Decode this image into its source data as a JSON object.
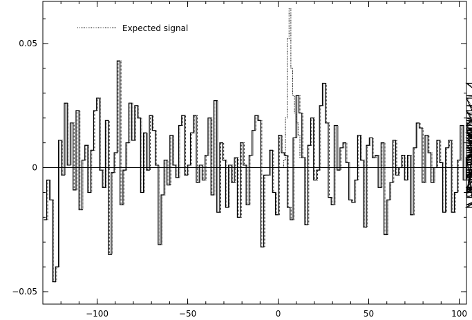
{
  "chart_data": {
    "type": "line",
    "title": "",
    "xlabel": "",
    "ylabel": "",
    "xlim": [
      -130,
      104
    ],
    "ylim": [
      -0.055,
      0.067
    ],
    "x_ticks": [
      -100,
      -50,
      0,
      50,
      100
    ],
    "x_tick_labels": [
      "−100",
      "−50",
      "0",
      "50",
      "100"
    ],
    "y_ticks": [
      -0.05,
      0,
      0.05
    ],
    "y_tick_labels": [
      "−0.05",
      "0",
      "0.05"
    ],
    "grid": false,
    "legend_position": "top-left",
    "series": [
      {
        "name": "",
        "style": "solid",
        "color": "#000000",
        "bin_width": 1.62,
        "x_start": -129.5,
        "values": [
          -0.021,
          -0.005,
          -0.013,
          -0.046,
          -0.04,
          0.011,
          -0.003,
          0.026,
          0.001,
          0.018,
          -0.009,
          0.023,
          -0.017,
          0.003,
          0.009,
          -0.01,
          0.007,
          0.023,
          0.028,
          -0.001,
          -0.008,
          0.019,
          -0.035,
          -0.002,
          0.006,
          0.043,
          -0.015,
          -0.001,
          0.01,
          0.026,
          0.011,
          0.025,
          0.02,
          -0.01,
          0.014,
          -0.001,
          0.021,
          0.015,
          0.001,
          -0.031,
          -0.011,
          0.003,
          -0.007,
          0.013,
          0.001,
          -0.004,
          0.017,
          0.021,
          -0.003,
          0.001,
          0.014,
          0.021,
          -0.006,
          0.001,
          -0.005,
          0.005,
          0.02,
          -0.011,
          0.027,
          -0.018,
          0.01,
          0.003,
          -0.016,
          0.001,
          -0.006,
          0.004,
          -0.02,
          0.01,
          0.001,
          -0.015,
          0.005,
          0.015,
          0.021,
          0.019,
          -0.032,
          -0.003,
          -0.003,
          0.007,
          -0.01,
          -0.019,
          0.013,
          0.006,
          0.005,
          -0.016,
          -0.021,
          0.012,
          0.029,
          0.022,
          0.004,
          -0.023,
          0.009,
          0.02,
          -0.005,
          -0.001,
          0.025,
          0.034,
          0.018,
          -0.012,
          -0.015,
          0.017,
          -0.001,
          0.008,
          0.01,
          0.002,
          -0.013,
          -0.014,
          -0.005,
          0.013,
          0.003,
          -0.024,
          0.009,
          0.012,
          0.004,
          0.005,
          -0.008,
          0.01,
          -0.027,
          -0.013,
          -0.006,
          0.011,
          -0.003,
          0.0,
          0.005,
          -0.005,
          0.005,
          -0.019,
          0.008,
          0.018,
          0.016,
          -0.006,
          0.013,
          0.006,
          -0.006,
          0.0,
          0.011,
          0.002,
          -0.018,
          0.008,
          0.011,
          -0.018,
          -0.01,
          0.003,
          0.017,
          -0.005,
          0.004,
          0.005,
          -0.012,
          0.015,
          0.016,
          -0.009,
          0.014,
          0.008,
          0.017,
          0.028,
          0.002,
          0.034,
          0.023,
          -0.004,
          0.017,
          -0.008,
          0.013,
          0.005,
          0.001,
          0.008,
          -0.003,
          0.004,
          0.012,
          -0.008,
          -0.016,
          0.004,
          0.022,
          0.011,
          -0.005,
          -0.001,
          0.006,
          0.01,
          0.002,
          0.013,
          -0.002,
          -0.01,
          0.014,
          -0.004,
          0.015,
          0.029,
          0.025,
          0.019,
          0.008,
          0.014,
          0.018,
          -0.009,
          0.005,
          0.016,
          0.001,
          0.011,
          0.007,
          -0.012,
          0.013,
          0.0,
          0.005,
          0.015,
          0.003,
          0.02,
          -0.002,
          -0.015,
          0.016,
          0.01,
          0.001,
          0.013,
          0.009,
          0.005,
          -0.003,
          0.015,
          0.001,
          0.005,
          -0.002,
          0.004,
          -0.001,
          0.014,
          -0.01,
          0.008,
          0.016,
          -0.008,
          0.005,
          0.012,
          -0.004,
          0.003,
          0.001,
          0.007,
          0.01,
          0.011,
          -0.004,
          0.012,
          0.008,
          -0.003,
          0.014
        ]
      },
      {
        "name": "Expected signal",
        "style": "dotted",
        "color": "#000000",
        "segment": [
          {
            "x": 2,
            "y": 0.0
          },
          {
            "x": 3,
            "y": 0.003
          },
          {
            "x": 4,
            "y": 0.02
          },
          {
            "x": 5,
            "y": 0.052
          },
          {
            "x": 6,
            "y": 0.064
          },
          {
            "x": 7,
            "y": 0.04
          },
          {
            "x": 8,
            "y": 0.029
          },
          {
            "x": 9,
            "y": 0.022
          },
          {
            "x": 10,
            "y": 0.018
          },
          {
            "x": 11,
            "y": 0.013
          },
          {
            "x": 12,
            "y": 0.004
          }
        ]
      }
    ]
  }
}
